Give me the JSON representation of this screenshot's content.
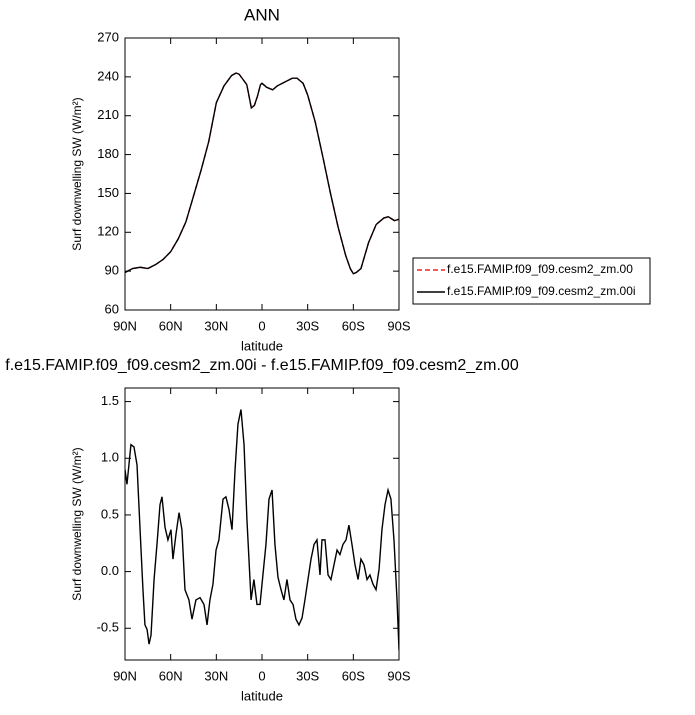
{
  "chart_data": [
    {
      "type": "line",
      "title": "ANN",
      "x_label": "latitude",
      "y_label": "Surf downwelling SW (W/m²)",
      "x": [
        90,
        85,
        80,
        75,
        70,
        65,
        60,
        55,
        50,
        45,
        40,
        35,
        30,
        25,
        20,
        17,
        15,
        10,
        7,
        5,
        3,
        1,
        0,
        -3,
        -7,
        -10,
        -15,
        -20,
        -23,
        -27,
        -30,
        -35,
        -40,
        -45,
        -50,
        -55,
        -58,
        -60,
        -62,
        -65,
        -70,
        -75,
        -80,
        -83,
        -87,
        -90
      ],
      "series": [
        {
          "name": "f.e15.FAMIP.f09_f09.cesm2_zm.00",
          "color": "#e8232a",
          "line_style": "dashed",
          "values": [
            89,
            92,
            93,
            92,
            95,
            99,
            105,
            115,
            128,
            148,
            168,
            190,
            220,
            233,
            241,
            243,
            242,
            234,
            216,
            218,
            225,
            234,
            235,
            232,
            230,
            233,
            236,
            239,
            239,
            235,
            226,
            205,
            178,
            150,
            124,
            102,
            92,
            88,
            89,
            92,
            112,
            126,
            131,
            132,
            129,
            130
          ]
        },
        {
          "name": "f.e15.FAMIP.f09_f09.cesm2_zm.00i",
          "color": "#000000",
          "line_style": "solid",
          "values": [
            89,
            92,
            93,
            92,
            95,
            99,
            105,
            115,
            128,
            148,
            168,
            190,
            220,
            233,
            241,
            243,
            242,
            234,
            216,
            218,
            225,
            234,
            235,
            232,
            230,
            233,
            236,
            239,
            239,
            235,
            226,
            205,
            178,
            150,
            124,
            102,
            92,
            88,
            89,
            92,
            112,
            126,
            131,
            132,
            129,
            130
          ]
        }
      ],
      "xlim": [
        90,
        -90
      ],
      "xticks": [
        {
          "value": 90,
          "label": "90N"
        },
        {
          "value": 60,
          "label": "60N"
        },
        {
          "value": 30,
          "label": "30N"
        },
        0,
        {
          "value": -30,
          "label": "30S"
        },
        {
          "value": -60,
          "label": "60S"
        },
        {
          "value": -90,
          "label": "90S"
        }
      ],
      "ylim": [
        60,
        270
      ],
      "yticks": [
        60,
        90,
        120,
        150,
        180,
        210,
        240,
        270
      ],
      "legend": "right"
    },
    {
      "type": "line",
      "title": "f.e15.FAMIP.f09_f09.cesm2_zm.00i - f.e15.FAMIP.f09_f09.cesm2_zm.00",
      "x_label": "latitude",
      "y_label": "Surf downwelling SW (W/m²)",
      "x": [
        90,
        88.7,
        86.1,
        84.1,
        82.1,
        80.1,
        78.2,
        76.9,
        75.5,
        74.2,
        72.9,
        70.9,
        69.0,
        67.0,
        65.7,
        63.7,
        61.8,
        59.8,
        58.5,
        56.5,
        54.5,
        52.6,
        50.6,
        48.0,
        46.0,
        43.4,
        40.7,
        38.1,
        36.1,
        34.2,
        32.2,
        30.2,
        28.3,
        25.6,
        23.7,
        21.7,
        19.7,
        17.7,
        15.8,
        13.8,
        11.8,
        9.9,
        7.2,
        5.3,
        3.3,
        1.3,
        -0.6,
        -2.6,
        -4.6,
        -6.6,
        -8.5,
        -10.5,
        -12.5,
        -14.4,
        -16.4,
        -18.4,
        -20.4,
        -22.3,
        -24.3,
        -26.3,
        -28.2,
        -30.2,
        -32.2,
        -34.2,
        -36.1,
        -38.1,
        -39.4,
        -41.4,
        -43.4,
        -45.3,
        -47.3,
        -49.3,
        -51.2,
        -53.2,
        -55.2,
        -57.1,
        -59.1,
        -61.1,
        -63.1,
        -65.0,
        -67.0,
        -69.0,
        -70.9,
        -72.9,
        -74.9,
        -76.9,
        -78.8,
        -80.8,
        -82.8,
        -84.7,
        -86.7,
        -88.7,
        -90
      ],
      "values": [
        0.9,
        0.77,
        1.12,
        1.1,
        0.94,
        0.37,
        -0.16,
        -0.47,
        -0.51,
        -0.64,
        -0.56,
        -0.07,
        0.24,
        0.59,
        0.66,
        0.39,
        0.28,
        0.37,
        0.11,
        0.33,
        0.52,
        0.37,
        -0.16,
        -0.25,
        -0.42,
        -0.25,
        -0.23,
        -0.29,
        -0.47,
        -0.25,
        -0.11,
        0.19,
        0.28,
        0.64,
        0.66,
        0.55,
        0.37,
        0.9,
        1.3,
        1.43,
        1.12,
        0.46,
        -0.25,
        -0.07,
        -0.29,
        -0.29,
        -0.03,
        0.24,
        0.64,
        0.72,
        0.24,
        -0.05,
        -0.16,
        -0.25,
        -0.07,
        -0.25,
        -0.29,
        -0.42,
        -0.47,
        -0.41,
        -0.25,
        -0.07,
        0.11,
        0.24,
        0.28,
        -0.03,
        0.28,
        0.28,
        -0.03,
        -0.07,
        0.06,
        0.19,
        0.15,
        0.24,
        0.28,
        0.41,
        0.24,
        0.06,
        -0.07,
        0.11,
        0.06,
        -0.07,
        -0.03,
        -0.11,
        -0.16,
        0.02,
        0.37,
        0.59,
        0.72,
        0.64,
        0.28,
        -0.25,
        -0.69
      ],
      "color": "#000000",
      "xlim": [
        90,
        -90
      ],
      "xticks": [
        {
          "value": 90,
          "label": "90N"
        },
        {
          "value": 60,
          "label": "60N"
        },
        {
          "value": 30,
          "label": "30N"
        },
        0,
        {
          "value": -30,
          "label": "30S"
        },
        {
          "value": -60,
          "label": "60S"
        },
        {
          "value": -90,
          "label": "90S"
        }
      ],
      "ylim": [
        -0.78,
        1.62
      ],
      "yticks": [
        -0.5,
        {
          "value": 0,
          "label": "0.0"
        },
        0.5,
        {
          "value": 1,
          "label": "1.0"
        },
        1.5
      ]
    }
  ]
}
